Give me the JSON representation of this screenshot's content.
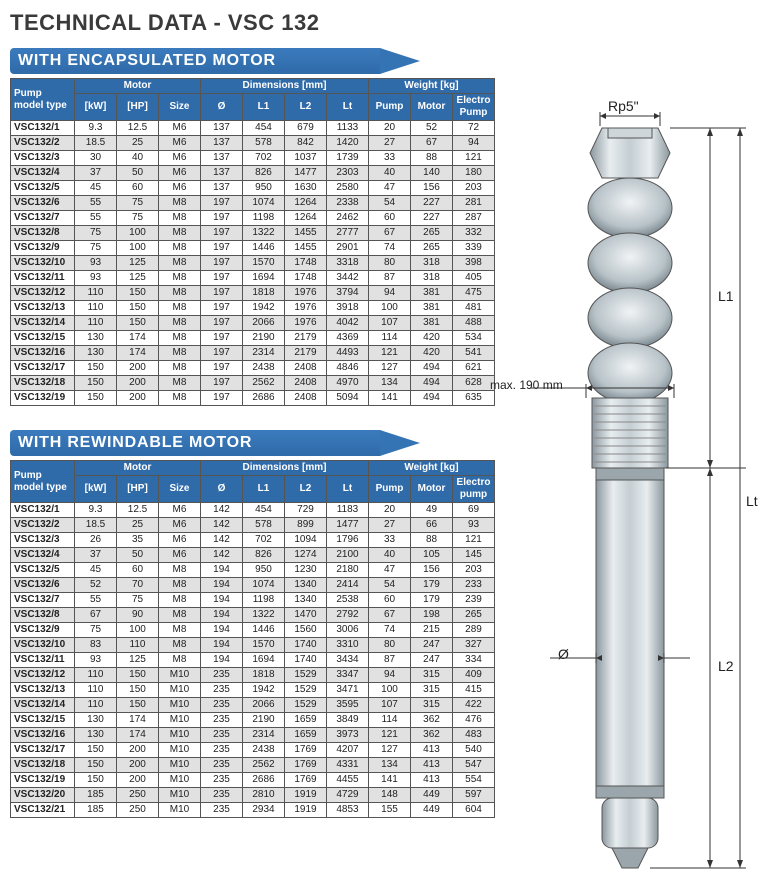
{
  "title": "TECHNICAL DATA - VSC 132",
  "section1_title": "WITH ENCAPSULATED MOTOR",
  "section2_title": "WITH REWINDABLE MOTOR",
  "headers": {
    "group_model": "Pump model type",
    "group_motor": "Motor",
    "group_dim": "Dimensions [mm]",
    "group_weight": "Weight [kg]",
    "kw": "[kW]",
    "hp": "[HP]",
    "size": "Size",
    "dia": "Ø",
    "l1": "L1",
    "l2": "L2",
    "lt": "Lt",
    "pump": "Pump",
    "motor": "Motor",
    "ep": "Electro Pump",
    "ep2": "Electro pump"
  },
  "table1": {
    "rows": [
      [
        "VSC132/1",
        "9.3",
        "12.5",
        "M6",
        "137",
        "454",
        "679",
        "1133",
        "20",
        "52",
        "72"
      ],
      [
        "VSC132/2",
        "18.5",
        "25",
        "M6",
        "137",
        "578",
        "842",
        "1420",
        "27",
        "67",
        "94"
      ],
      [
        "VSC132/3",
        "30",
        "40",
        "M6",
        "137",
        "702",
        "1037",
        "1739",
        "33",
        "88",
        "121"
      ],
      [
        "VSC132/4",
        "37",
        "50",
        "M6",
        "137",
        "826",
        "1477",
        "2303",
        "40",
        "140",
        "180"
      ],
      [
        "VSC132/5",
        "45",
        "60",
        "M6",
        "137",
        "950",
        "1630",
        "2580",
        "47",
        "156",
        "203"
      ],
      [
        "VSC132/6",
        "55",
        "75",
        "M8",
        "197",
        "1074",
        "1264",
        "2338",
        "54",
        "227",
        "281"
      ],
      [
        "VSC132/7",
        "55",
        "75",
        "M8",
        "197",
        "1198",
        "1264",
        "2462",
        "60",
        "227",
        "287"
      ],
      [
        "VSC132/8",
        "75",
        "100",
        "M8",
        "197",
        "1322",
        "1455",
        "2777",
        "67",
        "265",
        "332"
      ],
      [
        "VSC132/9",
        "75",
        "100",
        "M8",
        "197",
        "1446",
        "1455",
        "2901",
        "74",
        "265",
        "339"
      ],
      [
        "VSC132/10",
        "93",
        "125",
        "M8",
        "197",
        "1570",
        "1748",
        "3318",
        "80",
        "318",
        "398"
      ],
      [
        "VSC132/11",
        "93",
        "125",
        "M8",
        "197",
        "1694",
        "1748",
        "3442",
        "87",
        "318",
        "405"
      ],
      [
        "VSC132/12",
        "110",
        "150",
        "M8",
        "197",
        "1818",
        "1976",
        "3794",
        "94",
        "381",
        "475"
      ],
      [
        "VSC132/13",
        "110",
        "150",
        "M8",
        "197",
        "1942",
        "1976",
        "3918",
        "100",
        "381",
        "481"
      ],
      [
        "VSC132/14",
        "110",
        "150",
        "M8",
        "197",
        "2066",
        "1976",
        "4042",
        "107",
        "381",
        "488"
      ],
      [
        "VSC132/15",
        "130",
        "174",
        "M8",
        "197",
        "2190",
        "2179",
        "4369",
        "114",
        "420",
        "534"
      ],
      [
        "VSC132/16",
        "130",
        "174",
        "M8",
        "197",
        "2314",
        "2179",
        "4493",
        "121",
        "420",
        "541"
      ],
      [
        "VSC132/17",
        "150",
        "200",
        "M8",
        "197",
        "2438",
        "2408",
        "4846",
        "127",
        "494",
        "621"
      ],
      [
        "VSC132/18",
        "150",
        "200",
        "M8",
        "197",
        "2562",
        "2408",
        "4970",
        "134",
        "494",
        "628"
      ],
      [
        "VSC132/19",
        "150",
        "200",
        "M8",
        "197",
        "2686",
        "2408",
        "5094",
        "141",
        "494",
        "635"
      ]
    ]
  },
  "table2": {
    "rows": [
      [
        "VSC132/1",
        "9.3",
        "12.5",
        "M6",
        "142",
        "454",
        "729",
        "1183",
        "20",
        "49",
        "69"
      ],
      [
        "VSC132/2",
        "18.5",
        "25",
        "M6",
        "142",
        "578",
        "899",
        "1477",
        "27",
        "66",
        "93"
      ],
      [
        "VSC132/3",
        "26",
        "35",
        "M6",
        "142",
        "702",
        "1094",
        "1796",
        "33",
        "88",
        "121"
      ],
      [
        "VSC132/4",
        "37",
        "50",
        "M6",
        "142",
        "826",
        "1274",
        "2100",
        "40",
        "105",
        "145"
      ],
      [
        "VSC132/5",
        "45",
        "60",
        "M8",
        "194",
        "950",
        "1230",
        "2180",
        "47",
        "156",
        "203"
      ],
      [
        "VSC132/6",
        "52",
        "70",
        "M8",
        "194",
        "1074",
        "1340",
        "2414",
        "54",
        "179",
        "233"
      ],
      [
        "VSC132/7",
        "55",
        "75",
        "M8",
        "194",
        "1198",
        "1340",
        "2538",
        "60",
        "179",
        "239"
      ],
      [
        "VSC132/8",
        "67",
        "90",
        "M8",
        "194",
        "1322",
        "1470",
        "2792",
        "67",
        "198",
        "265"
      ],
      [
        "VSC132/9",
        "75",
        "100",
        "M8",
        "194",
        "1446",
        "1560",
        "3006",
        "74",
        "215",
        "289"
      ],
      [
        "VSC132/10",
        "83",
        "110",
        "M8",
        "194",
        "1570",
        "1740",
        "3310",
        "80",
        "247",
        "327"
      ],
      [
        "VSC132/11",
        "93",
        "125",
        "M8",
        "194",
        "1694",
        "1740",
        "3434",
        "87",
        "247",
        "334"
      ],
      [
        "VSC132/12",
        "110",
        "150",
        "M10",
        "235",
        "1818",
        "1529",
        "3347",
        "94",
        "315",
        "409"
      ],
      [
        "VSC132/13",
        "110",
        "150",
        "M10",
        "235",
        "1942",
        "1529",
        "3471",
        "100",
        "315",
        "415"
      ],
      [
        "VSC132/14",
        "110",
        "150",
        "M10",
        "235",
        "2066",
        "1529",
        "3595",
        "107",
        "315",
        "422"
      ],
      [
        "VSC132/15",
        "130",
        "174",
        "M10",
        "235",
        "2190",
        "1659",
        "3849",
        "114",
        "362",
        "476"
      ],
      [
        "VSC132/16",
        "130",
        "174",
        "M10",
        "235",
        "2314",
        "1659",
        "3973",
        "121",
        "362",
        "483"
      ],
      [
        "VSC132/17",
        "150",
        "200",
        "M10",
        "235",
        "2438",
        "1769",
        "4207",
        "127",
        "413",
        "540"
      ],
      [
        "VSC132/18",
        "150",
        "200",
        "M10",
        "235",
        "2562",
        "1769",
        "4331",
        "134",
        "413",
        "547"
      ],
      [
        "VSC132/19",
        "150",
        "200",
        "M10",
        "235",
        "2686",
        "1769",
        "4455",
        "141",
        "413",
        "554"
      ],
      [
        "VSC132/20",
        "185",
        "250",
        "M10",
        "235",
        "2810",
        "1919",
        "4729",
        "148",
        "449",
        "597"
      ],
      [
        "VSC132/21",
        "185",
        "250",
        "M10",
        "235",
        "2934",
        "1919",
        "4853",
        "155",
        "449",
        "604"
      ]
    ]
  },
  "diagram": {
    "top_label": "Rp5\"",
    "max_label": "max. 190 mm",
    "dia_label": "Ø",
    "l1_label": "L1",
    "l2_label": "L2",
    "lt_label": "Lt",
    "colors": {
      "metal_light": "#d7dde0",
      "metal_mid": "#b7c2c8",
      "metal_dark": "#8b989f",
      "outline": "#555555",
      "dim_line": "#333333"
    }
  }
}
